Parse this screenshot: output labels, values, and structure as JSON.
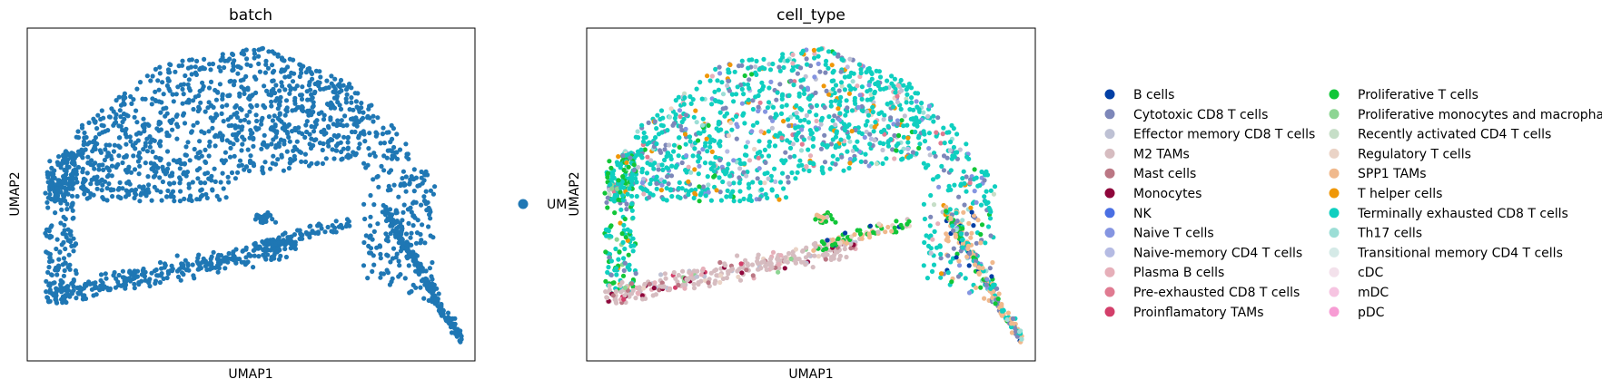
{
  "chart_data": [
    {
      "type": "scatter",
      "title": "batch",
      "xlabel": "UMAP1",
      "ylabel": "UMAP2",
      "grid": false,
      "legend_placement": "right",
      "series": [
        {
          "name": "UM",
          "color": "#1f77b4"
        }
      ]
    },
    {
      "type": "scatter",
      "title": "cell_type",
      "xlabel": "UMAP1",
      "ylabel": "UMAP2",
      "grid": false,
      "legend_placement": "right",
      "series": [
        {
          "name": "B cells",
          "color": "#023fa5"
        },
        {
          "name": "Cytotoxic CD8 T cells",
          "color": "#7d87b9"
        },
        {
          "name": "Effector memory CD8 T cells",
          "color": "#bec1d4"
        },
        {
          "name": "M2 TAMs",
          "color": "#d6bcc0"
        },
        {
          "name": "Mast cells",
          "color": "#bb7784"
        },
        {
          "name": "Monocytes",
          "color": "#8e063b"
        },
        {
          "name": "NK",
          "color": "#4a6fe3"
        },
        {
          "name": "Naive T cells",
          "color": "#8595e1"
        },
        {
          "name": "Naive-memory CD4 T cells",
          "color": "#b5bbe3"
        },
        {
          "name": "Plasma B cells",
          "color": "#e6afb9"
        },
        {
          "name": "Pre-exhausted CD8 T cells",
          "color": "#e07b91"
        },
        {
          "name": "Proinflamatory TAMs",
          "color": "#d33f6a"
        },
        {
          "name": "Proliferative T cells",
          "color": "#11c638"
        },
        {
          "name": "Proliferative monocytes and macrophages",
          "color": "#8dd593"
        },
        {
          "name": "Recently activated CD4 T cells",
          "color": "#c6dec7"
        },
        {
          "name": "Regulatory T cells",
          "color": "#ead3c6"
        },
        {
          "name": "SPP1 TAMs",
          "color": "#f0b98d"
        },
        {
          "name": "T helper cells",
          "color": "#ef9708"
        },
        {
          "name": "Terminally exhausted CD8 T cells",
          "color": "#0fcfc0"
        },
        {
          "name": "Th17 cells",
          "color": "#9cded6"
        },
        {
          "name": "Transitional memory CD4 T cells",
          "color": "#d5eae7"
        },
        {
          "name": "cDC",
          "color": "#f3e1eb"
        },
        {
          "name": "mDC",
          "color": "#f6c4e1"
        },
        {
          "name": "pDC",
          "color": "#f79cd4"
        }
      ]
    }
  ]
}
